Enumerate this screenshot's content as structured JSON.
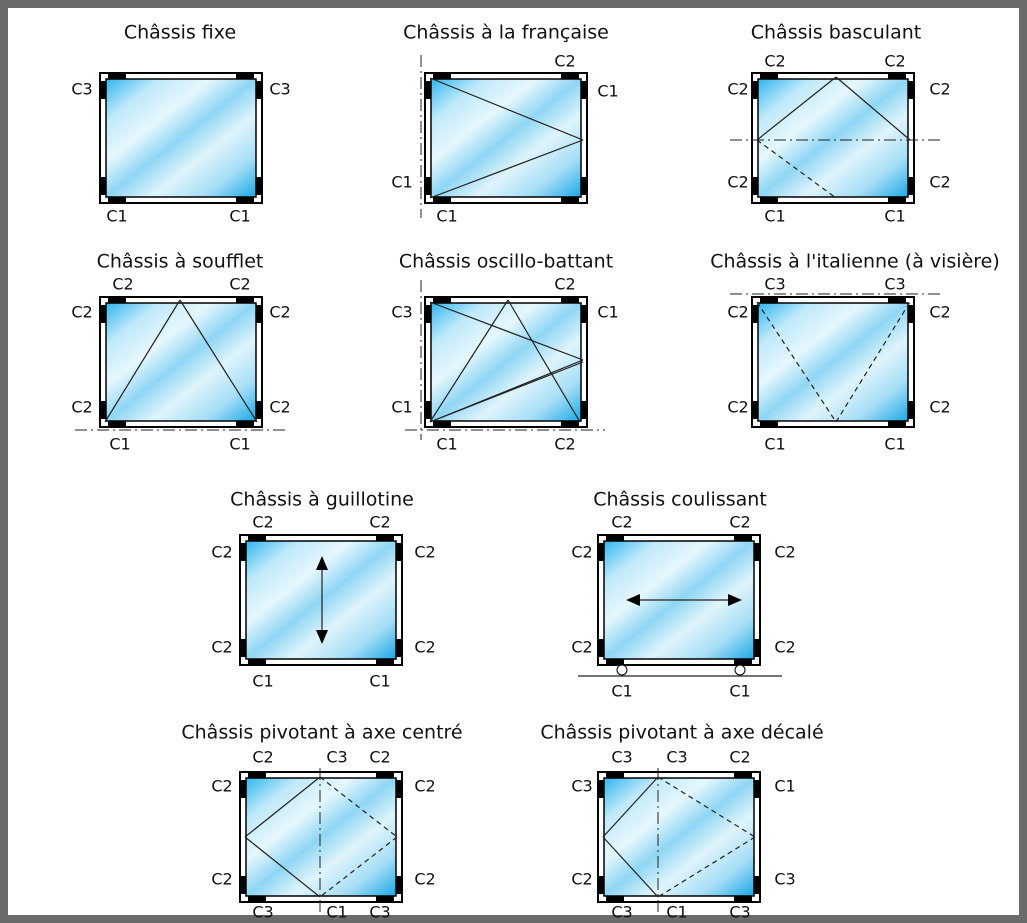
{
  "diagrams": [
    {
      "title": "Châssis fixe",
      "labels": [
        "C3",
        "C3",
        "C1",
        "C1"
      ]
    },
    {
      "title": "Châssis à la française",
      "labels": [
        "C2",
        "C1",
        "C1",
        "C1"
      ]
    },
    {
      "title": "Châssis basculant",
      "labels": [
        "C2",
        "C2",
        "C2",
        "C2",
        "C2",
        "C2",
        "C1",
        "C1"
      ]
    },
    {
      "title": "Châssis à soufflet",
      "labels": [
        "C2",
        "C2",
        "C2",
        "C2",
        "C2",
        "C2",
        "C1",
        "C1"
      ]
    },
    {
      "title": "Châssis oscillo-battant",
      "labels": [
        "C2",
        "C3",
        "C1",
        "C1",
        "C1",
        "C2"
      ]
    },
    {
      "title": "Châssis à l'italienne (à visière)",
      "labels": [
        "C3",
        "C3",
        "C2",
        "C2",
        "C2",
        "C2",
        "C1",
        "C1"
      ]
    },
    {
      "title": "Châssis à guillotine",
      "labels": [
        "C2",
        "C2",
        "C2",
        "C2",
        "C2",
        "C2",
        "C1",
        "C1"
      ]
    },
    {
      "title": "Châssis coulissant",
      "labels": [
        "C2",
        "C2",
        "C2",
        "C2",
        "C2",
        "C2",
        "C1",
        "C1"
      ]
    },
    {
      "title": "Châssis pivotant à axe centré",
      "labels": [
        "C2",
        "C3",
        "C2",
        "C2",
        "C2",
        "C2",
        "C2",
        "C3",
        "C1",
        "C3"
      ]
    },
    {
      "title": "Châssis pivotant à axe décalé",
      "labels": [
        "C3",
        "C3",
        "C2",
        "C3",
        "C1",
        "C2",
        "C3",
        "C3",
        "C1",
        "C3"
      ]
    }
  ]
}
